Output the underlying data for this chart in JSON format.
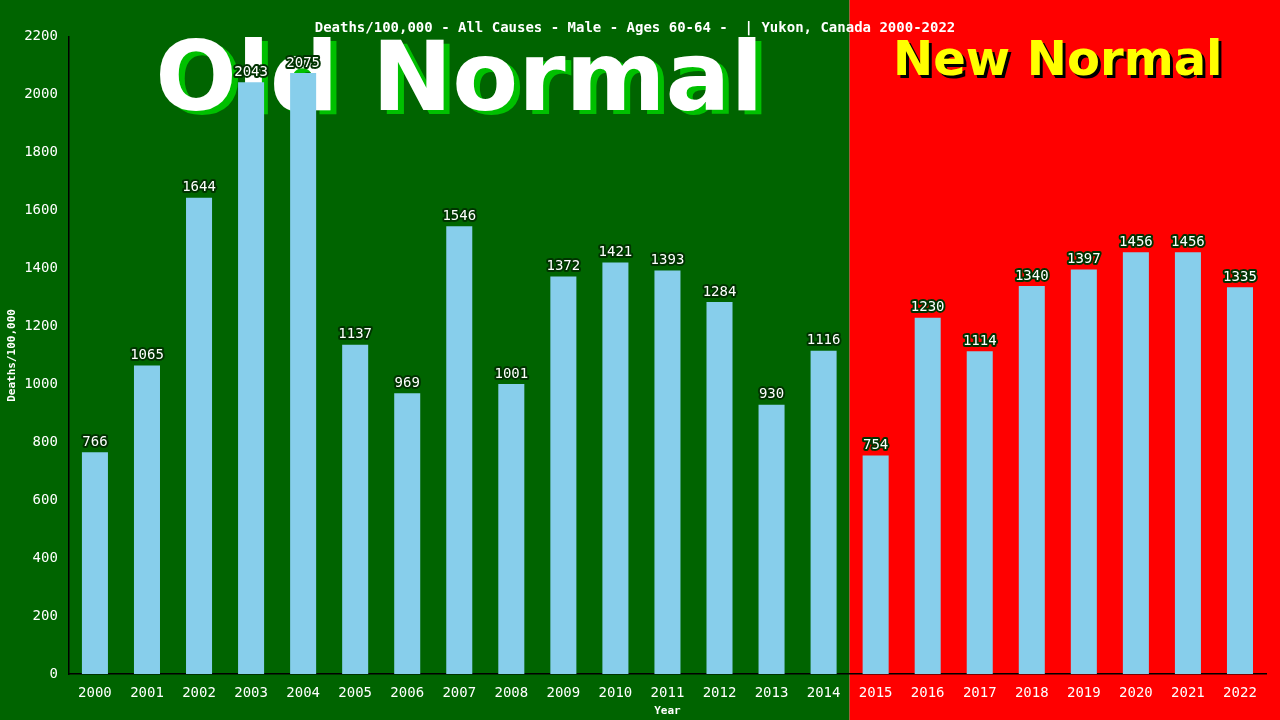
{
  "chart_data": {
    "type": "bar",
    "title": "Deaths/100,000 - All Causes - Male - Ages 60-64 -  | Yukon, Canada 2000-2022",
    "xlabel": "Year",
    "ylabel": "Deaths/100,000",
    "categories": [
      "2000",
      "2001",
      "2002",
      "2003",
      "2004",
      "2005",
      "2006",
      "2007",
      "2008",
      "2009",
      "2010",
      "2011",
      "2012",
      "2013",
      "2014",
      "2015",
      "2016",
      "2017",
      "2018",
      "2019",
      "2020",
      "2021",
      "2022"
    ],
    "values": [
      766,
      1065,
      1644,
      2043,
      2075,
      1137,
      969,
      1546,
      1001,
      1372,
      1421,
      1393,
      1284,
      930,
      1116,
      754,
      1230,
      1114,
      1340,
      1397,
      1456,
      1456,
      1335
    ],
    "color": "#87ceeb",
    "data_labels": true,
    "grid": false,
    "legend": false,
    "ylim": [
      0,
      2200
    ],
    "yticks": [
      0,
      200,
      400,
      600,
      800,
      1000,
      1200,
      1400,
      1600,
      1800,
      2000,
      2200
    ],
    "bands": [
      {
        "axis": "x",
        "from": "2000",
        "to": "2014",
        "label": "Old Normal",
        "color": "#006400"
      },
      {
        "axis": "x",
        "from": "2015",
        "to": "2022",
        "label": "New Normal",
        "color": "#ff0000"
      }
    ]
  }
}
